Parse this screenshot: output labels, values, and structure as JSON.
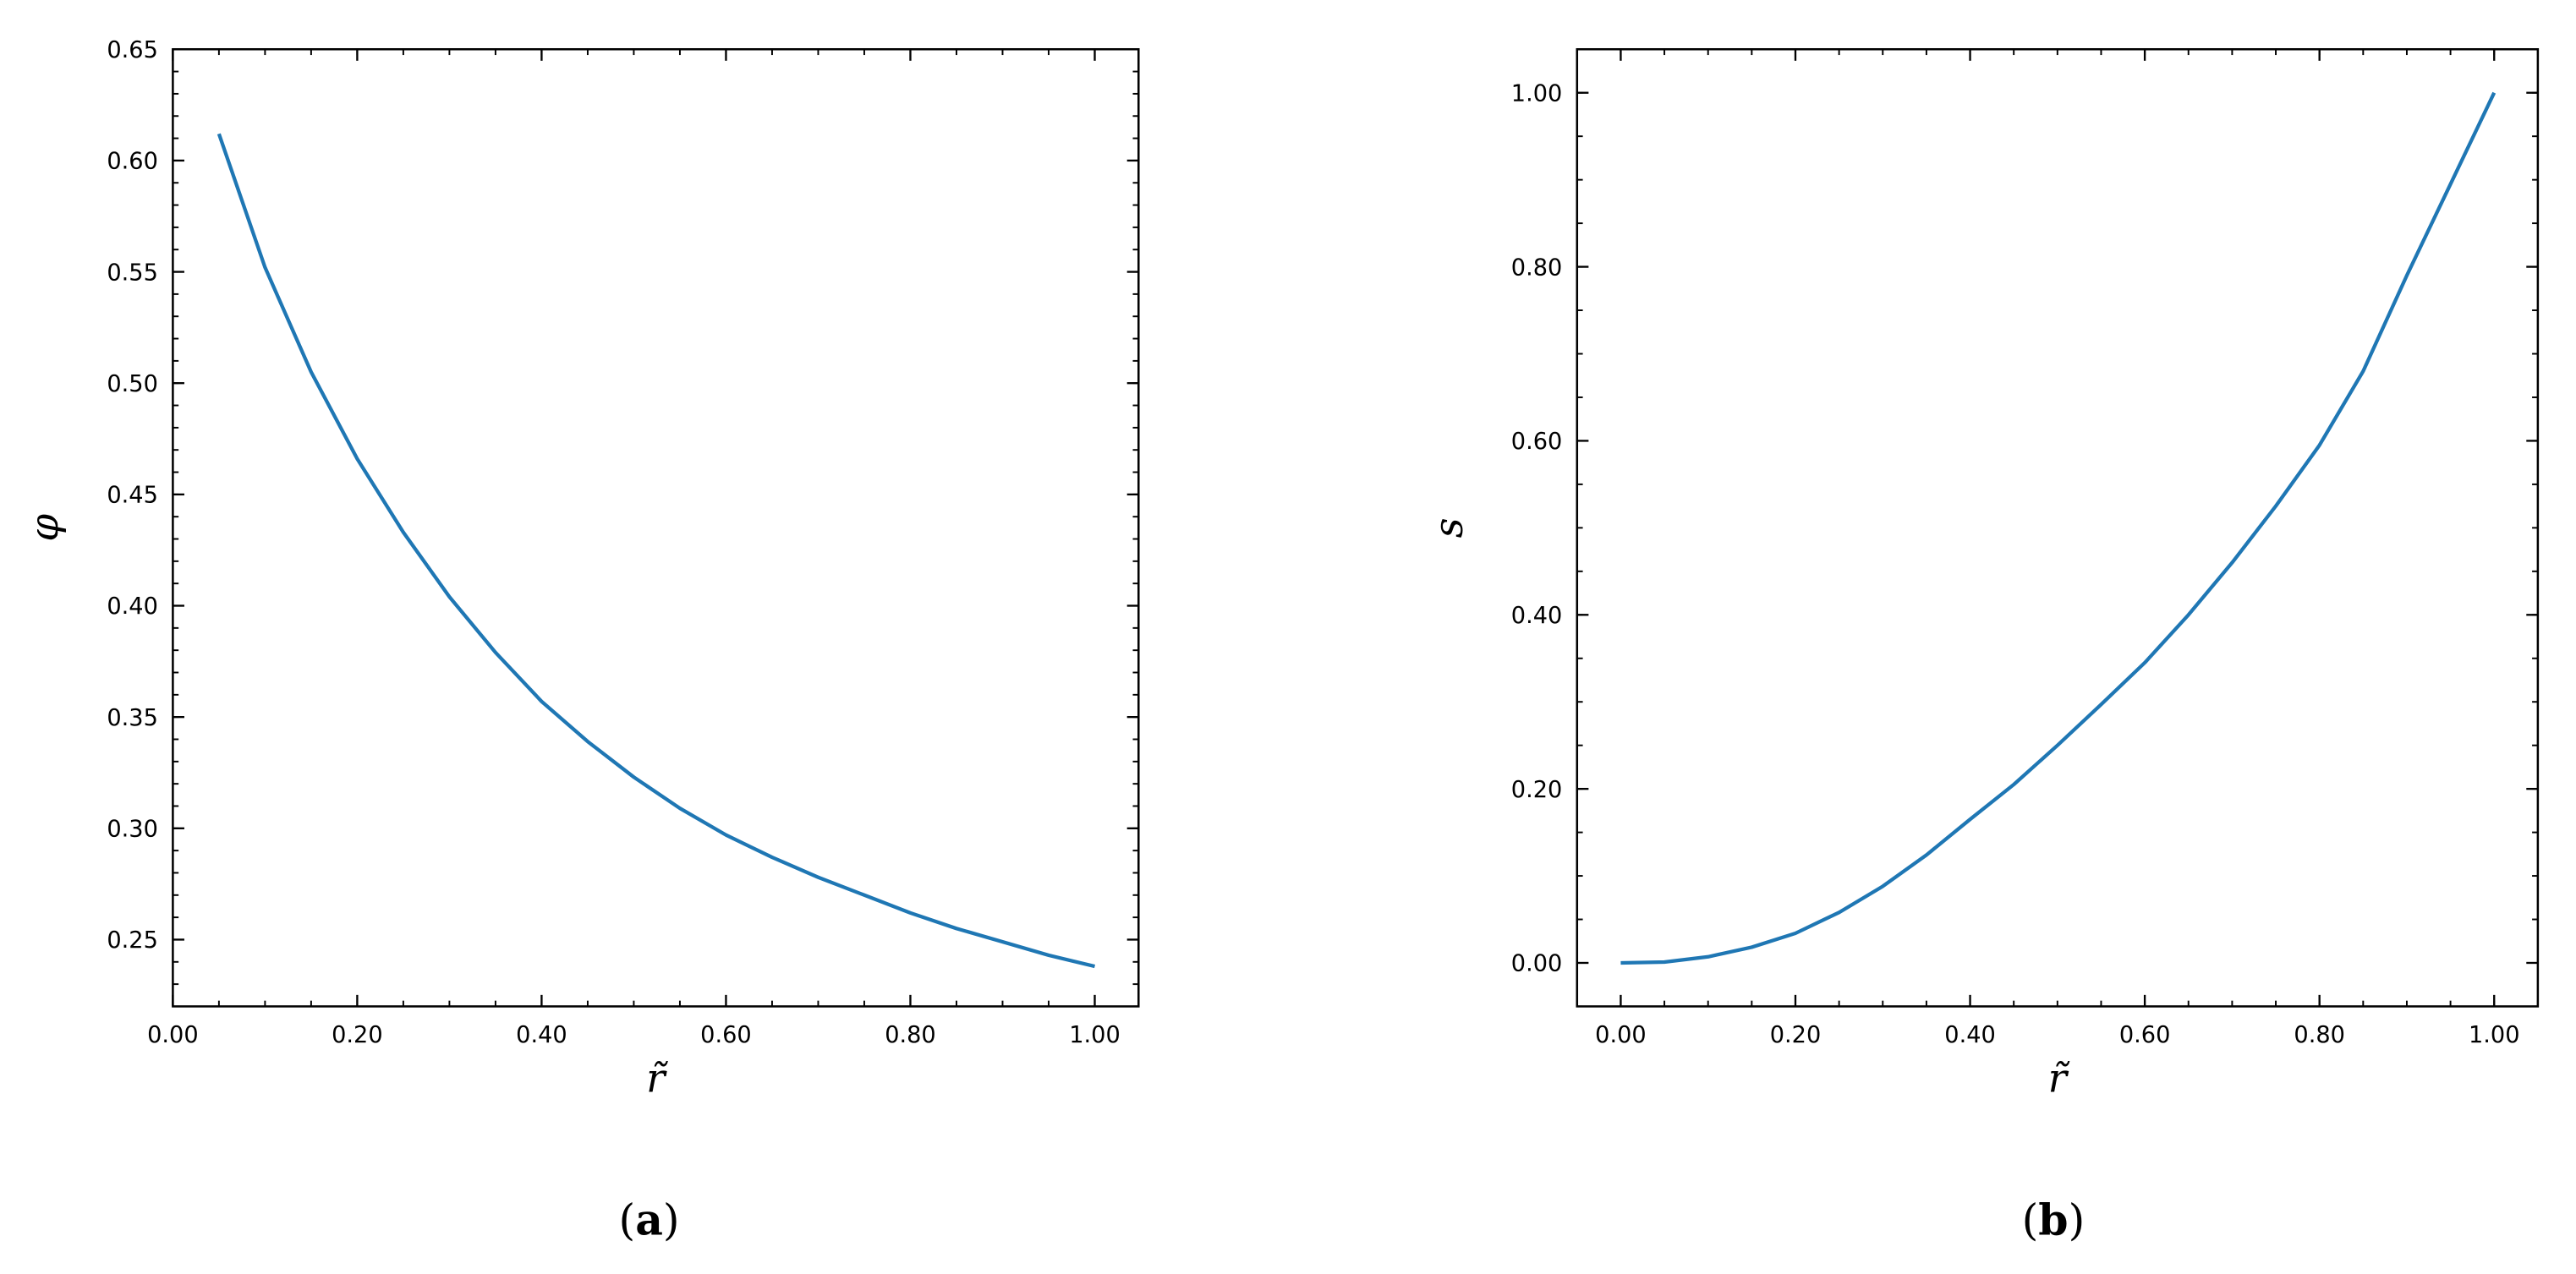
{
  "chart_data": [
    {
      "type": "line",
      "panel_label": "a",
      "xlabel": "r̃",
      "ylabel": "φ",
      "xlim": [
        0,
        1.0475
      ],
      "ylim": [
        0.22,
        0.65
      ],
      "xticks": [
        0,
        0.2,
        0.4,
        0.6,
        0.8,
        1.0
      ],
      "xtick_labels": [
        "0.00",
        "0.20",
        "0.40",
        "0.60",
        "0.80",
        "1.00"
      ],
      "xminor_step": 0.05,
      "yticks": [
        0.25,
        0.3,
        0.35,
        0.4,
        0.45,
        0.5,
        0.55,
        0.6,
        0.65
      ],
      "ytick_labels": [
        "0.25",
        "0.30",
        "0.35",
        "0.40",
        "0.45",
        "0.50",
        "0.55",
        "0.60",
        "0.65"
      ],
      "yminor_step": 0.01,
      "grid": false,
      "series": [
        {
          "name": "phi",
          "color": "#1f77b4",
          "x": [
            0.05,
            0.1,
            0.15,
            0.2,
            0.25,
            0.3,
            0.35,
            0.4,
            0.45,
            0.5,
            0.55,
            0.6,
            0.65,
            0.7,
            0.75,
            0.8,
            0.85,
            0.9,
            0.95,
            1.0
          ],
          "y": [
            0.612,
            0.552,
            0.505,
            0.466,
            0.433,
            0.404,
            0.379,
            0.357,
            0.339,
            0.323,
            0.309,
            0.297,
            0.287,
            0.278,
            0.27,
            0.262,
            0.255,
            0.249,
            0.243,
            0.238
          ]
        }
      ]
    },
    {
      "type": "line",
      "panel_label": "b",
      "xlabel": "r̃",
      "ylabel": "s",
      "xlim": [
        -0.05,
        1.05
      ],
      "ylim": [
        -0.05,
        1.05
      ],
      "xticks": [
        0,
        0.2,
        0.4,
        0.6,
        0.8,
        1.0
      ],
      "xtick_labels": [
        "0.00",
        "0.20",
        "0.40",
        "0.60",
        "0.80",
        "1.00"
      ],
      "xminor_step": 0.05,
      "yticks": [
        0,
        0.2,
        0.4,
        0.6,
        0.8,
        1.0
      ],
      "ytick_labels": [
        "0.00",
        "0.20",
        "0.40",
        "0.60",
        "0.80",
        "1.00"
      ],
      "yminor_step": 0.05,
      "grid": false,
      "series": [
        {
          "name": "s",
          "color": "#1f77b4",
          "x": [
            0,
            0.05,
            0.1,
            0.15,
            0.2,
            0.25,
            0.3,
            0.35,
            0.4,
            0.45,
            0.5,
            0.55,
            0.6,
            0.65,
            0.7,
            0.75,
            0.8,
            0.85,
            0.9,
            0.95,
            1.0
          ],
          "y": [
            0,
            0.001,
            0.007,
            0.018,
            0.034,
            0.058,
            0.088,
            0.124,
            0.165,
            0.205,
            0.25,
            0.297,
            0.345,
            0.4,
            0.46,
            0.525,
            0.595,
            0.68,
            0.79,
            0.895,
            1.0
          ]
        }
      ]
    }
  ],
  "captions": [
    "a",
    "b"
  ]
}
